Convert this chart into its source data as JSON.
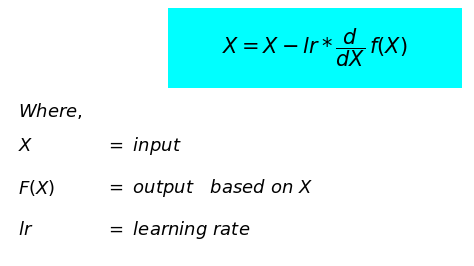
{
  "background_color": "#ffffff",
  "box_color": "#00ffff",
  "formula_fontsize": 15,
  "where_fontsize": 13,
  "line_fontsize": 13,
  "formula_text": "$X = X - lr * \\dfrac{d}{dX}\\, f(X)$",
  "where_text": "$Where,$",
  "lines": [
    {
      "left": "$X$",
      "right": "$=\\ input$"
    },
    {
      "left": "$F(X)$",
      "right": "$=\\ output\\quad based\\ on\\ X$"
    },
    {
      "left": "$lr$",
      "right": "$=\\ learning\\ rate$"
    }
  ]
}
